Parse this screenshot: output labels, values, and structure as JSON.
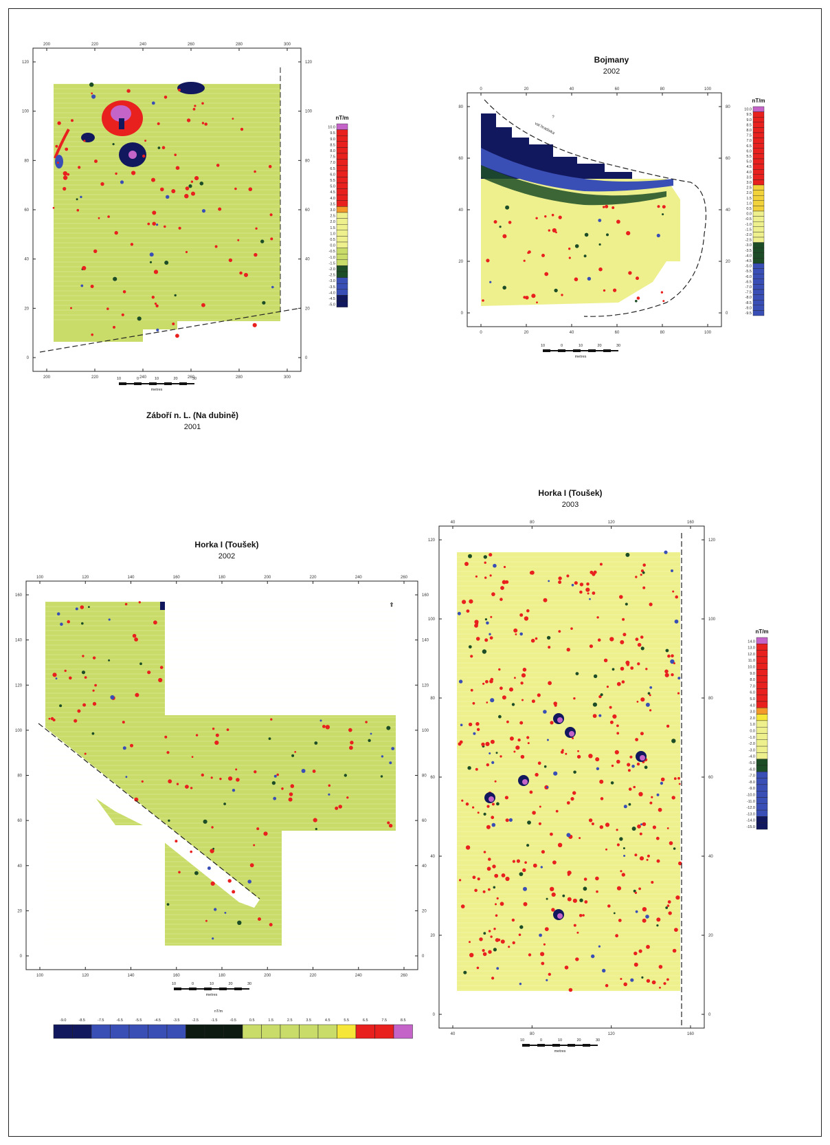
{
  "panels": {
    "zabori": {
      "title": "Záboří n. L. (Na dubině)",
      "year": "2001",
      "x_ticks": [
        "200",
        "220",
        "240",
        "260",
        "280",
        "300"
      ],
      "y_ticks": [
        "0",
        "20",
        "40",
        "60",
        "80",
        "100",
        "120"
      ],
      "scale_ticks": [
        "10",
        "0",
        "10",
        "20",
        "30"
      ],
      "scale_unit": "metres",
      "legend_title": "nT/m",
      "legend_values": [
        "10.0",
        "9.5",
        "9.0",
        "8.5",
        "8.0",
        "7.5",
        "7.0",
        "6.5",
        "6.0",
        "5.5",
        "5.0",
        "4.5",
        "4.0",
        "3.5",
        "3.0",
        "2.5",
        "2.0",
        "1.5",
        "1.0",
        "0.5",
        "0.0",
        "-0.5",
        "-1.0",
        "-1.5",
        "-2.0",
        "-2.5",
        "-3.0",
        "-3.5",
        "-4.0",
        "-4.5",
        "-5.0"
      ]
    },
    "bojmany": {
      "title": "Bojmany",
      "year": "2002",
      "x_ticks": [
        "0",
        "20",
        "40",
        "60",
        "80",
        "100"
      ],
      "y_ticks": [
        "0",
        "20",
        "40",
        "60",
        "80"
      ],
      "annotation_1": "?",
      "annotation_2": "val hradiska",
      "scale_ticks": [
        "10",
        "0",
        "10",
        "20",
        "30"
      ],
      "scale_unit": "metres",
      "legend_title": "nT/m",
      "legend_values": [
        "10.0",
        "9.5",
        "9.0",
        "8.5",
        "8.0",
        "7.5",
        "7.0",
        "6.5",
        "6.0",
        "5.5",
        "5.0",
        "4.5",
        "4.0",
        "3.5",
        "3.0",
        "2.5",
        "2.0",
        "1.5",
        "1.0",
        "0.5",
        "0.0",
        "-0.5",
        "-1.0",
        "-1.5",
        "-2.0",
        "-2.5",
        "-3.0",
        "-3.5",
        "-4.0",
        "-4.5",
        "-5.0",
        "-5.5",
        "-6.0",
        "-6.5",
        "-7.0",
        "-7.5",
        "-8.0",
        "-8.5",
        "-9.0",
        "-9.5"
      ]
    },
    "horka2002": {
      "title": "Horka I (Toušek)",
      "year": "2002",
      "x_ticks": [
        "100",
        "120",
        "140",
        "160",
        "180",
        "200",
        "220",
        "240",
        "260"
      ],
      "y_ticks": [
        "0",
        "20",
        "40",
        "60",
        "80",
        "100",
        "120",
        "140",
        "160"
      ],
      "north_arrow": "⇧",
      "scale_ticks": [
        "10",
        "0",
        "10",
        "20",
        "30"
      ],
      "scale_unit": "metres",
      "legend_title": "nT/m",
      "legend_values": [
        "-9.0",
        "-8.5",
        "-7.5",
        "-6.5",
        "-5.5",
        "-4.5",
        "-3.5",
        "-2.5",
        "-1.5",
        "-0.5",
        "0.5",
        "1.5",
        "2.5",
        "3.5",
        "4.5",
        "5.5",
        "6.5",
        "7.5",
        "8.5"
      ]
    },
    "horka2003": {
      "title": "Horka I (Toušek)",
      "year": "2003",
      "x_ticks": [
        "40",
        "80",
        "120",
        "160"
      ],
      "y_ticks": [
        "0",
        "20",
        "40",
        "60",
        "80",
        "100",
        "120"
      ],
      "scale_ticks": [
        "10",
        "0",
        "10",
        "20",
        "30"
      ],
      "scale_unit": "metres",
      "legend_title": "nT/m",
      "legend_values": [
        "14.0",
        "13.0",
        "12.0",
        "11.0",
        "10.0",
        "9.0",
        "8.0",
        "7.0",
        "6.0",
        "5.0",
        "4.0",
        "3.0",
        "2.0",
        "1.0",
        "0.0",
        "-1.0",
        "-2.0",
        "-3.0",
        "-4.0",
        "-5.0",
        "-6.0",
        "-7.0",
        "-8.0",
        "-9.0",
        "-10.0",
        "-11.0",
        "-12.0",
        "-13.0",
        "-14.0",
        "-15.0"
      ]
    }
  },
  "colors": {
    "green_field": "#c9dc6a",
    "yellow_field": "#eef08e",
    "positive": "#e8201e",
    "max": "#c564c8",
    "negative_blue": "#3a4fb5",
    "negative_dark": "#12185e",
    "negative_green": "#1d4d27"
  }
}
